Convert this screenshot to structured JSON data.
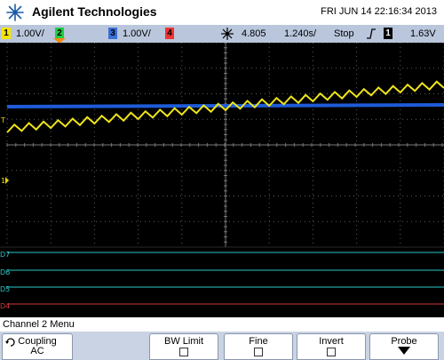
{
  "header": {
    "brand": "Agilent Technologies",
    "datetime": "FRI JUN 14 22:16:34 2013",
    "logo_icon": "agilent-spark-icon"
  },
  "status": {
    "channels": [
      {
        "num": "1",
        "scale": "1.00V/",
        "color": "#f5e400"
      },
      {
        "num": "2",
        "scale": "",
        "color": "#22cc44"
      },
      {
        "num": "3",
        "scale": "1.00V/",
        "color": "#3a6fd8"
      },
      {
        "num": "4",
        "scale": "",
        "color": "#ee3333"
      }
    ],
    "timebase": "4.805",
    "time_scale": "1.240s/",
    "run_state": "Stop",
    "trigger_channel": "1",
    "trigger_level": "1.63V"
  },
  "screen": {
    "colors": {
      "ch1": "#f0e51a",
      "ch3": "#1e5bd8",
      "grid": "#5a5a5a",
      "digital": "#28c7c7",
      "digital_red": "#d63a3a"
    },
    "markers": {
      "trigger": "T",
      "ch1": "1",
      "d7": "D7",
      "d6": "D6",
      "d5": "D5",
      "d4": "D4"
    }
  },
  "menu": {
    "title": "Channel 2  Menu",
    "softkeys": {
      "coupling": {
        "label": "Coupling",
        "value": "AC"
      },
      "bwlimit": {
        "label": "BW Limit"
      },
      "fine": {
        "label": "Fine"
      },
      "invert": {
        "label": "Invert"
      },
      "probe": {
        "label": "Probe"
      }
    }
  }
}
